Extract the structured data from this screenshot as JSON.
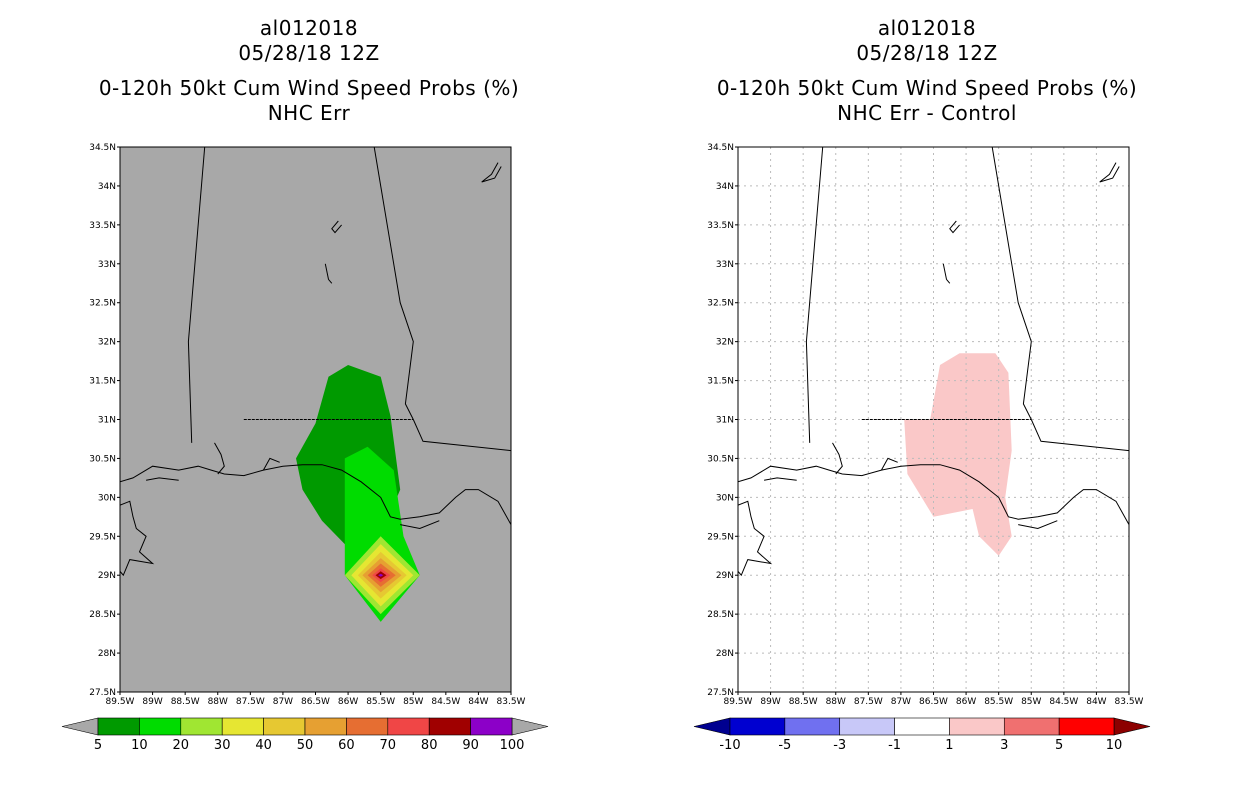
{
  "panels": [
    {
      "storm_id": "al012018",
      "date": "05/28/18 12Z",
      "title": "0-120h 50kt Cum Wind Speed Probs (%)",
      "subtitle": "NHC Err"
    },
    {
      "storm_id": "al012018",
      "date": "05/28/18 12Z",
      "title": "0-120h 50kt Cum Wind Speed Probs (%)",
      "subtitle": "NHC Err - Control"
    }
  ],
  "axes": {
    "lon_labels": [
      "89.5W",
      "89W",
      "88.5W",
      "88W",
      "87.5W",
      "87W",
      "86.5W",
      "86W",
      "85.5W",
      "85W",
      "84.5W",
      "84W",
      "83.5W"
    ],
    "lat_labels": [
      "27.5N",
      "28N",
      "28.5N",
      "29N",
      "29.5N",
      "30N",
      "30.5N",
      "31N",
      "31.5N",
      "32N",
      "32.5N",
      "33N",
      "33.5N",
      "34N",
      "34.5N"
    ],
    "lon_range": [
      -89.5,
      -83.5
    ],
    "lat_range": [
      27.5,
      34.5
    ]
  },
  "colors": {
    "ocean_gray": "#a8a8a8",
    "grid_dots": "#bbbbbb"
  },
  "colorbars": [
    {
      "labels": [
        "5",
        "10",
        "20",
        "30",
        "40",
        "50",
        "60",
        "70",
        "80",
        "90",
        "100"
      ],
      "colors": [
        "#009a00",
        "#00dc00",
        "#a0e632",
        "#e6e632",
        "#e6c832",
        "#e6a032",
        "#e66e32",
        "#f04646",
        "#a00000",
        "#8c00c8"
      ],
      "end_color": "#a8a8a8"
    },
    {
      "labels": [
        "-10",
        "-5",
        "-3",
        "-1",
        "1",
        "3",
        "5",
        "10"
      ],
      "colors": [
        "#0000d0",
        "#7070f0",
        "#c8c8f8",
        "#ffffff",
        "#fac8c8",
        "#f07070",
        "#ff0000"
      ],
      "low_end_color": "#000090",
      "high_end_color": "#8c0000"
    }
  ],
  "chart_data": [
    {
      "type": "heatmap",
      "title": "0-120h 50kt Cum Wind Speed Probs (%)",
      "subtitle": "NHC Err",
      "units": "%",
      "regions": [
        {
          "level": "5-10",
          "polygon": [
            [
              -86.5,
              30.95
            ],
            [
              -86.3,
              31.55
            ],
            [
              -86.0,
              31.7
            ],
            [
              -85.5,
              31.55
            ],
            [
              -85.35,
              31.05
            ],
            [
              -85.2,
              30.1
            ],
            [
              -85.3,
              29.9
            ],
            [
              -85.8,
              29.4
            ],
            [
              -86.05,
              29.4
            ],
            [
              -86.4,
              29.7
            ],
            [
              -86.7,
              30.1
            ],
            [
              -86.8,
              30.5
            ]
          ]
        },
        {
          "level": "10-20",
          "polygon": [
            [
              -86.05,
              30.5
            ],
            [
              -85.7,
              30.65
            ],
            [
              -85.3,
              30.35
            ],
            [
              -85.15,
              29.5
            ],
            [
              -84.9,
              29.0
            ],
            [
              -85.5,
              28.4
            ],
            [
              -86.05,
              29.0
            ]
          ]
        },
        {
          "level": "20-30",
          "polygon": [
            [
              -85.5,
              29.5
            ],
            [
              -84.9,
              29.0
            ],
            [
              -85.5,
              28.5
            ],
            [
              -86.05,
              29.0
            ]
          ]
        },
        {
          "level": "30-40",
          "polygon": [
            [
              -85.5,
              29.4
            ],
            [
              -85.0,
              29.0
            ],
            [
              -85.5,
              28.6
            ],
            [
              -85.95,
              29.0
            ]
          ]
        },
        {
          "level": "40-50",
          "polygon": [
            [
              -85.5,
              29.3
            ],
            [
              -85.1,
              29.0
            ],
            [
              -85.5,
              28.7
            ],
            [
              -85.85,
              29.0
            ]
          ]
        },
        {
          "level": "50-60",
          "polygon": [
            [
              -85.5,
              29.22
            ],
            [
              -85.18,
              29.0
            ],
            [
              -85.5,
              28.78
            ],
            [
              -85.78,
              29.0
            ]
          ]
        },
        {
          "level": "60-70",
          "polygon": [
            [
              -85.5,
              29.15
            ],
            [
              -85.27,
              29.0
            ],
            [
              -85.5,
              28.85
            ],
            [
              -85.7,
              29.0
            ]
          ]
        },
        {
          "level": "70-80",
          "polygon": [
            [
              -85.5,
              29.09
            ],
            [
              -85.35,
              29.0
            ],
            [
              -85.5,
              28.91
            ],
            [
              -85.63,
              29.0
            ]
          ]
        },
        {
          "level": "80-90",
          "polygon": [
            [
              -85.5,
              29.05
            ],
            [
              -85.41,
              29.0
            ],
            [
              -85.5,
              28.95
            ],
            [
              -85.58,
              29.0
            ]
          ]
        },
        {
          "level": "90-100",
          "polygon": [
            [
              -85.5,
              29.02
            ],
            [
              -85.46,
              29.0
            ],
            [
              -85.5,
              28.98
            ],
            [
              -85.54,
              29.0
            ]
          ]
        }
      ]
    },
    {
      "type": "heatmap",
      "title": "0-120h 50kt Cum Wind Speed Probs (%)",
      "subtitle": "NHC Err - Control",
      "units": "%",
      "regions": [
        {
          "level": "1-3",
          "polygon": [
            [
              -86.55,
              31.0
            ],
            [
              -86.4,
              31.7
            ],
            [
              -86.1,
              31.85
            ],
            [
              -85.55,
              31.85
            ],
            [
              -85.35,
              31.6
            ],
            [
              -85.3,
              30.6
            ],
            [
              -85.4,
              30.0
            ],
            [
              -85.3,
              29.5
            ],
            [
              -85.5,
              29.25
            ],
            [
              -85.8,
              29.5
            ],
            [
              -85.9,
              29.85
            ],
            [
              -86.5,
              29.75
            ],
            [
              -86.9,
              30.3
            ],
            [
              -86.95,
              31.0
            ]
          ]
        }
      ]
    }
  ]
}
